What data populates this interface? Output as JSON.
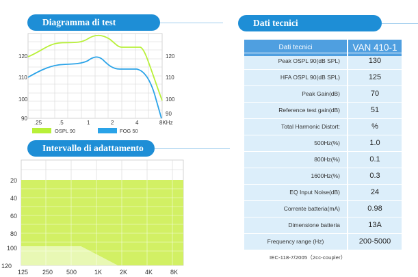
{
  "diagram": {
    "title": "Diagramma di test",
    "y_ticks_left": [
      "120",
      "110",
      "100",
      "90"
    ],
    "y_ticks_right": [
      "120",
      "110",
      "100",
      "90"
    ],
    "x_ticks": [
      ".25",
      ".5",
      "1",
      "2",
      "4",
      "8KHz"
    ],
    "legend": [
      {
        "label": "OSPL 90",
        "color": "#b8f038"
      },
      {
        "label": "FOG 50",
        "color": "#2aa3e8"
      }
    ]
  },
  "range": {
    "title": "Intervallo di adattamento",
    "y_ticks": [
      "20",
      "40",
      "60",
      "80",
      "100",
      "120"
    ],
    "x_ticks": [
      "125",
      "250",
      "500",
      "1K",
      "2K",
      "4K",
      "8K"
    ],
    "fill_color": "#d2f064"
  },
  "specs": {
    "title": "Dati tecnici",
    "header": {
      "label": "Dati tecnici",
      "model": "VAN 410-1"
    },
    "rows": [
      {
        "label": "Peak OSPL 90(dB SPL)",
        "value": "130",
        "align": "r"
      },
      {
        "label": "HFA OSPL 90(dB SPL)",
        "value": "125",
        "align": "r"
      },
      {
        "label": "Peak Gain(dB)",
        "value": "70",
        "align": "r"
      },
      {
        "label": "Reference test gain(dB)",
        "value": "51",
        "align": "r"
      },
      {
        "label": "Total Harmonic Distort:",
        "value": "%",
        "align": "r"
      },
      {
        "label": "500Hz(%)",
        "value": "1.0",
        "align": "r"
      },
      {
        "label": "800Hz(%)",
        "value": "0.1",
        "align": "r"
      },
      {
        "label": "1600Hz(%)",
        "value": "0.3",
        "align": "r"
      },
      {
        "label": "EQ Input Noise(dB)",
        "value": "24",
        "align": "r"
      },
      {
        "label": "Corrente batteria(mA)",
        "value": "0.98",
        "align": "r"
      },
      {
        "label": "Dimensione batteria",
        "value": "13A",
        "align": "r"
      },
      {
        "label": "Frequency range (Hz)",
        "value": "200-5000",
        "align": "c"
      }
    ],
    "note": "IEC-118-7/2005（2cc-coupler）"
  }
}
